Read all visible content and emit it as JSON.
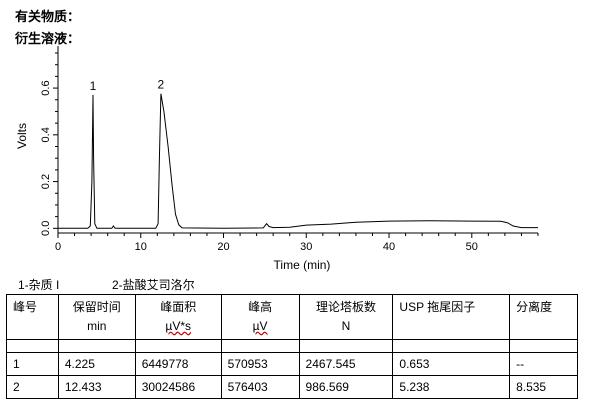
{
  "headings": {
    "line1": "有关物质：",
    "line2": "衍生溶液："
  },
  "chart_data": {
    "type": "line",
    "xlabel": "Time (min)",
    "ylabel": "Volts",
    "xlim": [
      0,
      58
    ],
    "ylim": [
      -0.02,
      0.78
    ],
    "x_ticks": [
      0,
      10,
      20,
      30,
      40,
      50
    ],
    "y_ticks": [
      0.0,
      0.2,
      0.4,
      0.6
    ],
    "y_tick_labels": [
      "0.0",
      "0.2",
      "0.4",
      "0.6"
    ],
    "grid": false,
    "series": [
      {
        "points": [
          [
            0.0,
            0.0
          ],
          [
            3.6,
            0.0
          ],
          [
            3.9,
            0.01
          ],
          [
            4.1,
            0.2
          ],
          [
            4.225,
            0.571
          ],
          [
            4.3,
            0.3
          ],
          [
            4.45,
            0.02
          ],
          [
            4.7,
            0.0
          ],
          [
            6.5,
            0.0
          ],
          [
            6.7,
            0.01
          ],
          [
            6.9,
            0.0
          ],
          [
            11.8,
            0.0
          ],
          [
            12.1,
            0.02
          ],
          [
            12.25,
            0.3
          ],
          [
            12.433,
            0.576
          ],
          [
            12.8,
            0.5
          ],
          [
            13.3,
            0.35
          ],
          [
            13.8,
            0.18
          ],
          [
            14.2,
            0.06
          ],
          [
            14.6,
            0.015
          ],
          [
            15.0,
            0.002
          ],
          [
            20.0,
            0.0
          ],
          [
            24.8,
            0.002
          ],
          [
            25.2,
            0.02
          ],
          [
            25.5,
            0.008
          ],
          [
            26.0,
            0.003
          ],
          [
            28.0,
            0.005
          ],
          [
            30.0,
            0.014
          ],
          [
            33.0,
            0.018
          ],
          [
            36.0,
            0.026
          ],
          [
            40.0,
            0.031
          ],
          [
            45.0,
            0.032
          ],
          [
            50.0,
            0.031
          ],
          [
            53.5,
            0.03
          ],
          [
            54.3,
            0.024
          ],
          [
            55.0,
            0.01
          ],
          [
            56.0,
            0.003
          ],
          [
            58.0,
            0.003
          ]
        ]
      }
    ],
    "peak_labels": [
      {
        "x": 4.225,
        "y": 0.571,
        "label": "1"
      },
      {
        "x": 12.433,
        "y": 0.576,
        "label": "2"
      }
    ]
  },
  "legend": {
    "item1": "1-杂质 I",
    "item2": "2-盐酸艾司洛尔"
  },
  "table": {
    "headers": [
      {
        "line1": "峰号",
        "line2": ""
      },
      {
        "line1": "保留时间",
        "line2": "min"
      },
      {
        "line1": "峰面积",
        "line2": "µV*s"
      },
      {
        "line1": "峰高",
        "line2": "µV"
      },
      {
        "line1": "理论塔板数",
        "line2": "N"
      },
      {
        "line1": "USP 拖尾因子",
        "line2": ""
      },
      {
        "line1": "分离度",
        "line2": ""
      }
    ],
    "rows": [
      [
        "1",
        "4.225",
        "6449778",
        "570953",
        "2467.545",
        "0.653",
        "--"
      ],
      [
        "2",
        "12.433",
        "30024586",
        "576403",
        "986.569",
        "5.238",
        "8.535"
      ]
    ]
  }
}
